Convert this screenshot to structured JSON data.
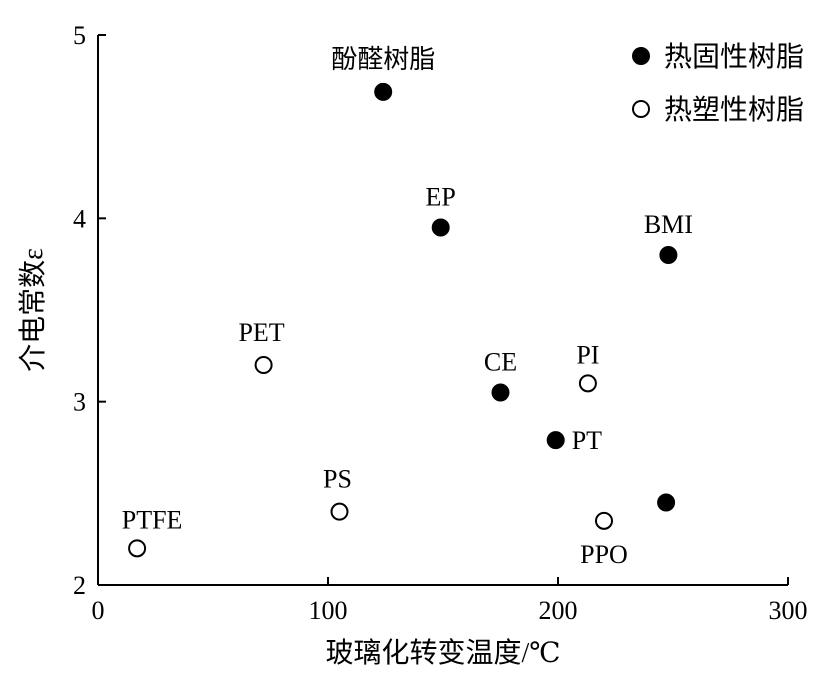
{
  "chart_data": {
    "type": "scatter",
    "title": "",
    "xlabel": "玻璃化转变温度/℃",
    "ylabel": "介电常数ε",
    "xlim": [
      0,
      300
    ],
    "ylim": [
      2,
      5
    ],
    "xticks": [
      0,
      100,
      200,
      300
    ],
    "yticks": [
      2,
      3,
      4,
      5
    ],
    "legend_position": "top-right",
    "grid": false,
    "series": [
      {
        "name": "热固性树脂",
        "marker": "filled-circle",
        "color": "#000000",
        "points": [
          {
            "label": "酚醛树脂",
            "x": 124,
            "y": 4.69
          },
          {
            "label": "EP",
            "x": 149,
            "y": 3.95
          },
          {
            "label": "BMI",
            "x": 248,
            "y": 3.8
          },
          {
            "label": "CE",
            "x": 175,
            "y": 3.05
          },
          {
            "label": "PT",
            "x": 199,
            "y": 2.79
          },
          {
            "label": "",
            "x": 247,
            "y": 2.45
          }
        ]
      },
      {
        "name": "热塑性树脂",
        "marker": "open-circle",
        "color": "#000000",
        "points": [
          {
            "label": "PET",
            "x": 72,
            "y": 3.2
          },
          {
            "label": "PI",
            "x": 213,
            "y": 3.1
          },
          {
            "label": "PS",
            "x": 105,
            "y": 2.4
          },
          {
            "label": "PTFE",
            "x": 17,
            "y": 2.2
          },
          {
            "label": "PPO",
            "x": 220,
            "y": 2.35
          }
        ]
      }
    ]
  }
}
